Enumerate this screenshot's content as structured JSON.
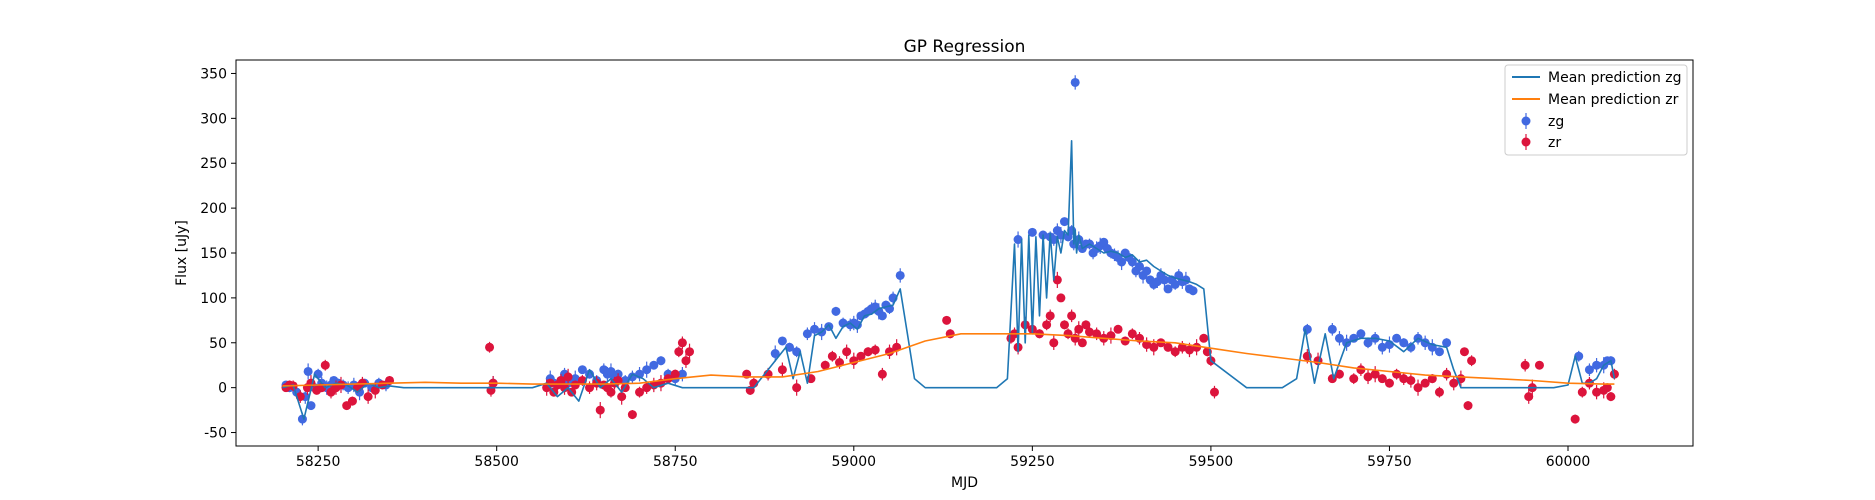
{
  "chart_data": {
    "type": "scatter",
    "title": "GP Regression",
    "xlabel": "MJD",
    "ylabel": "Flux [uJy]",
    "xlim": [
      58135,
      60175
    ],
    "ylim": [
      -65,
      365
    ],
    "xticks": [
      58250,
      58500,
      58750,
      59000,
      59250,
      59500,
      59750,
      60000
    ],
    "yticks": [
      -50,
      0,
      50,
      100,
      150,
      200,
      250,
      300,
      350
    ],
    "grid": false,
    "legend_position": "top-right",
    "colors": {
      "mean_zg": "#1f77b4",
      "mean_zr": "#ff7f0e",
      "zg": "#4169e1",
      "zr": "#dc143c"
    },
    "series": [
      {
        "name": "Mean prediction zg",
        "kind": "line",
        "x": [
          58200,
          58215,
          58230,
          58245,
          58260,
          58275,
          58290,
          58305,
          58320,
          58335,
          58350,
          58370,
          58400,
          58450,
          58500,
          58550,
          58570,
          58585,
          58600,
          58615,
          58630,
          58645,
          58660,
          58675,
          58690,
          58705,
          58720,
          58740,
          58760,
          58780,
          58820,
          58860,
          58890,
          58905,
          58915,
          58925,
          58935,
          58945,
          58955,
          58965,
          58975,
          58985,
          58995,
          59005,
          59015,
          59025,
          59035,
          59045,
          59055,
          59065,
          59075,
          59085,
          59100,
          59150,
          59200,
          59215,
          59225,
          59230,
          59235,
          59240,
          59245,
          59250,
          59255,
          59260,
          59265,
          59270,
          59275,
          59280,
          59285,
          59290,
          59295,
          59300,
          59305,
          59308,
          59310,
          59312,
          59315,
          59320,
          59330,
          59340,
          59350,
          59360,
          59370,
          59380,
          59390,
          59400,
          59410,
          59420,
          59430,
          59440,
          59450,
          59460,
          59470,
          59480,
          59490,
          59500,
          59550,
          59600,
          59620,
          59632,
          59645,
          59660,
          59672,
          59690,
          59710,
          59730,
          59750,
          59770,
          59790,
          59810,
          59830,
          59840,
          59850,
          59900,
          59950,
          59980,
          60000,
          60010,
          60020,
          60030,
          60040,
          60050,
          60060,
          60065
        ],
        "y": [
          0,
          3,
          -35,
          15,
          0,
          5,
          3,
          -5,
          5,
          0,
          2,
          0,
          0,
          0,
          0,
          0,
          5,
          -10,
          0,
          -15,
          20,
          0,
          10,
          -5,
          15,
          10,
          0,
          5,
          0,
          0,
          0,
          0,
          30,
          45,
          10,
          40,
          5,
          58,
          62,
          70,
          55,
          68,
          72,
          65,
          80,
          82,
          88,
          90,
          92,
          110,
          60,
          10,
          0,
          0,
          0,
          10,
          160,
          40,
          165,
          50,
          170,
          60,
          168,
          80,
          170,
          100,
          172,
          120,
          168,
          150,
          175,
          170,
          275,
          160,
          175,
          150,
          170,
          155,
          160,
          155,
          150,
          152,
          150,
          145,
          148,
          140,
          142,
          135,
          130,
          125,
          122,
          120,
          118,
          115,
          110,
          30,
          0,
          0,
          10,
          65,
          5,
          60,
          10,
          50,
          55,
          55,
          52,
          40,
          55,
          48,
          45,
          20,
          0,
          0,
          0,
          0,
          3,
          35,
          5,
          5,
          10,
          25,
          30,
          10
        ]
      },
      {
        "name": "Mean prediction zr",
        "kind": "line",
        "x": [
          58200,
          58250,
          58300,
          58350,
          58400,
          58450,
          58500,
          58550,
          58600,
          58650,
          58700,
          58750,
          58800,
          58850,
          58900,
          58950,
          59000,
          59050,
          59100,
          59150,
          59200,
          59250,
          59300,
          59350,
          59400,
          59450,
          59500,
          59550,
          59600,
          59650,
          59700,
          59750,
          59800,
          59850,
          59900,
          59950,
          60000,
          60050,
          60065
        ],
        "y": [
          2,
          3,
          4,
          5,
          6,
          5,
          5,
          4,
          4,
          4,
          5,
          10,
          14,
          12,
          12,
          18,
          28,
          38,
          52,
          60,
          60,
          60,
          58,
          55,
          52,
          50,
          44,
          38,
          33,
          28,
          22,
          18,
          14,
          12,
          10,
          8,
          5,
          4,
          4
        ]
      },
      {
        "name": "zg",
        "kind": "errorbar",
        "x": [
          58205,
          58210,
          58220,
          58228,
          58232,
          58236,
          58240,
          58245,
          58250,
          58255,
          58262,
          58268,
          58272,
          58278,
          58285,
          58292,
          58300,
          58308,
          58315,
          58325,
          58335,
          58345,
          58495,
          58575,
          58580,
          58585,
          58590,
          58595,
          58600,
          58610,
          58620,
          58630,
          58640,
          58650,
          58655,
          58660,
          58665,
          58670,
          58680,
          58690,
          58700,
          58710,
          58720,
          58730,
          58740,
          58750,
          58760,
          58890,
          58900,
          58910,
          58920,
          58935,
          58945,
          58955,
          58965,
          58975,
          58985,
          58995,
          59000,
          59005,
          59010,
          59015,
          59020,
          59025,
          59030,
          59035,
          59040,
          59045,
          59050,
          59055,
          59065,
          59230,
          59250,
          59265,
          59275,
          59280,
          59285,
          59290,
          59295,
          59300,
          59305,
          59308,
          59310,
          59315,
          59320,
          59325,
          59330,
          59335,
          59340,
          59345,
          59350,
          59355,
          59360,
          59365,
          59370,
          59375,
          59380,
          59385,
          59390,
          59395,
          59400,
          59405,
          59410,
          59415,
          59420,
          59425,
          59430,
          59435,
          59440,
          59445,
          59450,
          59455,
          59460,
          59465,
          59470,
          59475,
          59635,
          59670,
          59680,
          59690,
          59700,
          59710,
          59720,
          59730,
          59740,
          59750,
          59760,
          59770,
          59780,
          59790,
          59800,
          59810,
          59820,
          59830,
          60015,
          60030,
          60040,
          60050,
          60055,
          60060
        ],
        "y": [
          3,
          0,
          -5,
          -35,
          -10,
          18,
          -20,
          0,
          15,
          5,
          0,
          3,
          8,
          5,
          3,
          0,
          3,
          -5,
          5,
          0,
          5,
          3,
          5,
          10,
          5,
          3,
          8,
          15,
          5,
          10,
          20,
          15,
          8,
          20,
          15,
          18,
          10,
          15,
          8,
          12,
          15,
          20,
          25,
          30,
          15,
          10,
          15,
          38,
          52,
          45,
          40,
          60,
          65,
          62,
          68,
          85,
          72,
          70,
          72,
          70,
          80,
          82,
          85,
          88,
          90,
          85,
          80,
          92,
          88,
          100,
          125,
          165,
          173,
          170,
          168,
          165,
          175,
          170,
          185,
          168,
          175,
          160,
          340,
          165,
          155,
          160,
          160,
          150,
          155,
          158,
          162,
          155,
          150,
          148,
          145,
          140,
          150,
          145,
          140,
          130,
          135,
          125,
          130,
          120,
          115,
          118,
          125,
          120,
          110,
          120,
          115,
          125,
          118,
          120,
          110,
          108,
          65,
          65,
          55,
          50,
          55,
          60,
          50,
          55,
          45,
          48,
          55,
          50,
          45,
          55,
          50,
          45,
          40,
          50,
          35,
          20,
          25,
          25,
          30,
          30
        ]
      },
      {
        "name": "zr",
        "kind": "errorbar",
        "x": [
          58205,
          58210,
          58215,
          58225,
          58235,
          58240,
          58248,
          58255,
          58260,
          58268,
          58275,
          58282,
          58290,
          58298,
          58305,
          58312,
          58320,
          58330,
          58340,
          58350,
          58490,
          58492,
          58495,
          58570,
          58575,
          58580,
          58585,
          58590,
          58595,
          58600,
          58605,
          58610,
          58620,
          58630,
          58640,
          58645,
          58650,
          58655,
          58660,
          58665,
          58670,
          58675,
          58680,
          58690,
          58700,
          58710,
          58720,
          58730,
          58740,
          58750,
          58755,
          58760,
          58765,
          58770,
          58850,
          58855,
          58860,
          58880,
          58900,
          58920,
          58940,
          58960,
          58970,
          58980,
          58990,
          59000,
          59010,
          59020,
          59030,
          59040,
          59050,
          59060,
          59130,
          59135,
          59220,
          59225,
          59230,
          59240,
          59250,
          59260,
          59270,
          59275,
          59280,
          59285,
          59290,
          59295,
          59300,
          59305,
          59310,
          59315,
          59320,
          59325,
          59330,
          59340,
          59350,
          59360,
          59370,
          59380,
          59390,
          59400,
          59410,
          59420,
          59430,
          59440,
          59450,
          59460,
          59470,
          59480,
          59490,
          59495,
          59500,
          59505,
          59635,
          59650,
          59670,
          59680,
          59700,
          59710,
          59720,
          59730,
          59740,
          59750,
          59760,
          59770,
          59780,
          59790,
          59800,
          59810,
          59820,
          59830,
          59840,
          59850,
          59855,
          59860,
          59865,
          59940,
          59945,
          59950,
          59960,
          60010,
          60020,
          60030,
          60040,
          60050,
          60055,
          60060,
          60065
        ],
        "y": [
          0,
          3,
          2,
          -10,
          0,
          5,
          -3,
          0,
          25,
          -5,
          0,
          3,
          -20,
          -15,
          0,
          5,
          -10,
          -3,
          3,
          8,
          45,
          -3,
          5,
          0,
          5,
          -5,
          3,
          8,
          0,
          12,
          -5,
          3,
          8,
          0,
          5,
          -25,
          3,
          0,
          -5,
          5,
          8,
          -10,
          0,
          -30,
          -5,
          0,
          3,
          5,
          10,
          15,
          40,
          50,
          30,
          40,
          15,
          -3,
          5,
          15,
          20,
          0,
          10,
          25,
          35,
          28,
          40,
          30,
          35,
          40,
          42,
          15,
          40,
          45,
          75,
          60,
          55,
          60,
          45,
          70,
          65,
          60,
          70,
          80,
          50,
          120,
          100,
          70,
          60,
          80,
          55,
          65,
          50,
          70,
          62,
          60,
          55,
          58,
          65,
          52,
          60,
          55,
          48,
          45,
          50,
          45,
          40,
          45,
          42,
          45,
          55,
          40,
          30,
          -5,
          35,
          30,
          10,
          15,
          10,
          20,
          12,
          15,
          10,
          5,
          15,
          10,
          8,
          0,
          5,
          10,
          -5,
          15,
          5,
          10,
          40,
          -20,
          30,
          25,
          -10,
          0,
          25,
          -35,
          -5,
          5,
          -5,
          -3,
          0,
          -10,
          15
        ]
      }
    ]
  }
}
